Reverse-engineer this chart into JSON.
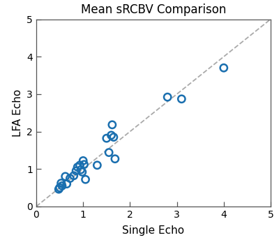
{
  "title": "Mean sRCBV Comparison",
  "xlabel": "Single Echo",
  "ylabel": "LFA Echo",
  "xlim": [
    0,
    5
  ],
  "ylim": [
    0,
    5
  ],
  "xticks": [
    0,
    1,
    2,
    3,
    4,
    5
  ],
  "yticks": [
    0,
    1,
    2,
    3,
    4,
    5
  ],
  "scatter_x": [
    0.48,
    0.5,
    0.53,
    0.55,
    0.62,
    0.65,
    0.72,
    0.8,
    0.85,
    0.88,
    0.93,
    0.95,
    0.98,
    1.0,
    1.02,
    1.05,
    1.3,
    1.5,
    1.55,
    1.6,
    1.62,
    1.65,
    1.68,
    2.8,
    3.1,
    4.0
  ],
  "scatter_y": [
    0.46,
    0.5,
    0.62,
    0.55,
    0.8,
    0.6,
    0.75,
    0.82,
    0.95,
    1.05,
    1.1,
    0.98,
    0.92,
    1.22,
    1.12,
    0.72,
    1.1,
    1.82,
    1.44,
    1.9,
    2.18,
    1.85,
    1.27,
    2.92,
    2.87,
    3.7
  ],
  "marker_color": "#1A6FAF",
  "marker_size": 55,
  "marker_linewidth": 1.8,
  "line_color": "#aaaaaa",
  "line_style": "--",
  "line_width": 1.3,
  "background_color": "#ffffff",
  "title_fontsize": 12,
  "label_fontsize": 11,
  "tick_fontsize": 10,
  "spine_color": "#555555",
  "spine_linewidth": 0.9
}
